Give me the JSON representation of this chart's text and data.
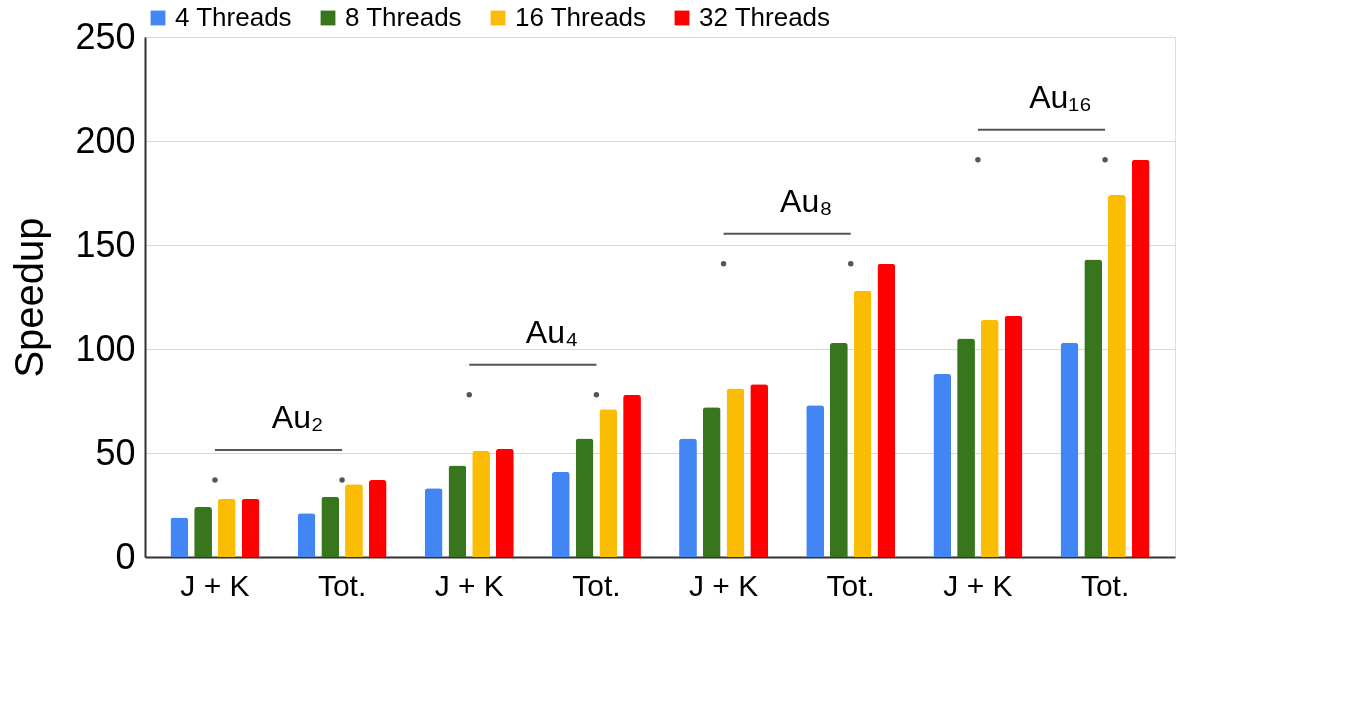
{
  "chart_data": {
    "type": "bar",
    "ylabel": "Speedup",
    "categories": [
      "J + K",
      "Tot.",
      "J + K",
      "Tot.",
      "J + K",
      "Tot.",
      "J + K",
      "Tot."
    ],
    "series": [
      {
        "name": "4 Threads",
        "color": "#4285f4",
        "values": [
          19,
          21,
          33,
          41,
          57,
          73,
          88,
          103
        ]
      },
      {
        "name": "8 Threads",
        "color": "#38761d",
        "values": [
          24,
          29,
          44,
          57,
          72,
          103,
          105,
          143
        ]
      },
      {
        "name": "16 Threads",
        "color": "#fbbc04",
        "values": [
          28,
          35,
          51,
          71,
          81,
          128,
          114,
          174
        ]
      },
      {
        "name": "32 Threads",
        "color": "#ff0000",
        "values": [
          28,
          37,
          52,
          78,
          83,
          141,
          116,
          191
        ]
      }
    ],
    "annotations": [
      "Au₂",
      "Au₄",
      "Au₈",
      "Au₁₆"
    ],
    "ylim": [
      0,
      250
    ],
    "yticks": [
      0,
      50,
      100,
      150,
      200,
      250
    ],
    "grid": "y",
    "legend": "top left"
  }
}
